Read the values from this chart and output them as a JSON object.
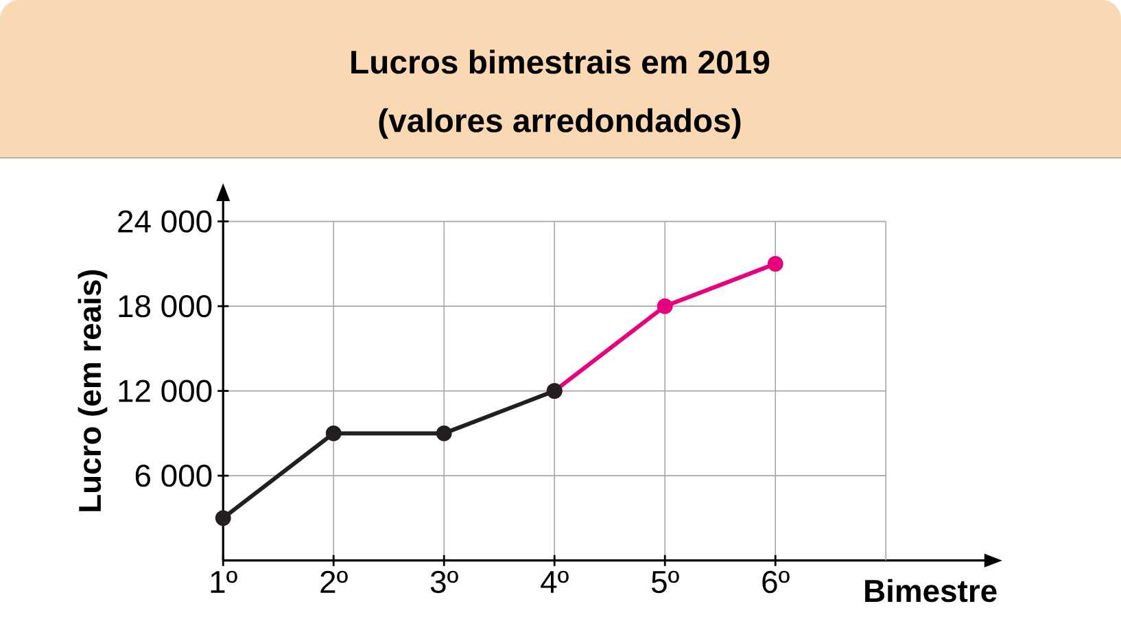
{
  "chart_data": {
    "type": "line",
    "title": "Lucros bimestrais em 2019",
    "subtitle": "(valores arredondados)",
    "xlabel": "Bimestre",
    "ylabel": "Lucro (em reais)",
    "categories": [
      "1º",
      "2º",
      "3º",
      "4º",
      "5º",
      "6º"
    ],
    "series": [
      {
        "color": "#231f20",
        "values": [
          3000,
          9000,
          9000,
          12000,
          null,
          null
        ]
      },
      {
        "color": "#e6007e",
        "values": [
          null,
          null,
          null,
          12000,
          18000,
          21000
        ]
      }
    ],
    "ylim": [
      0,
      24000
    ],
    "yticks": [
      {
        "value": 6000,
        "label": "6 000"
      },
      {
        "value": 12000,
        "label": "12 000"
      },
      {
        "value": 18000,
        "label": "18 000"
      },
      {
        "value": 24000,
        "label": "24 000"
      }
    ],
    "grid": true,
    "marker": "circle"
  }
}
